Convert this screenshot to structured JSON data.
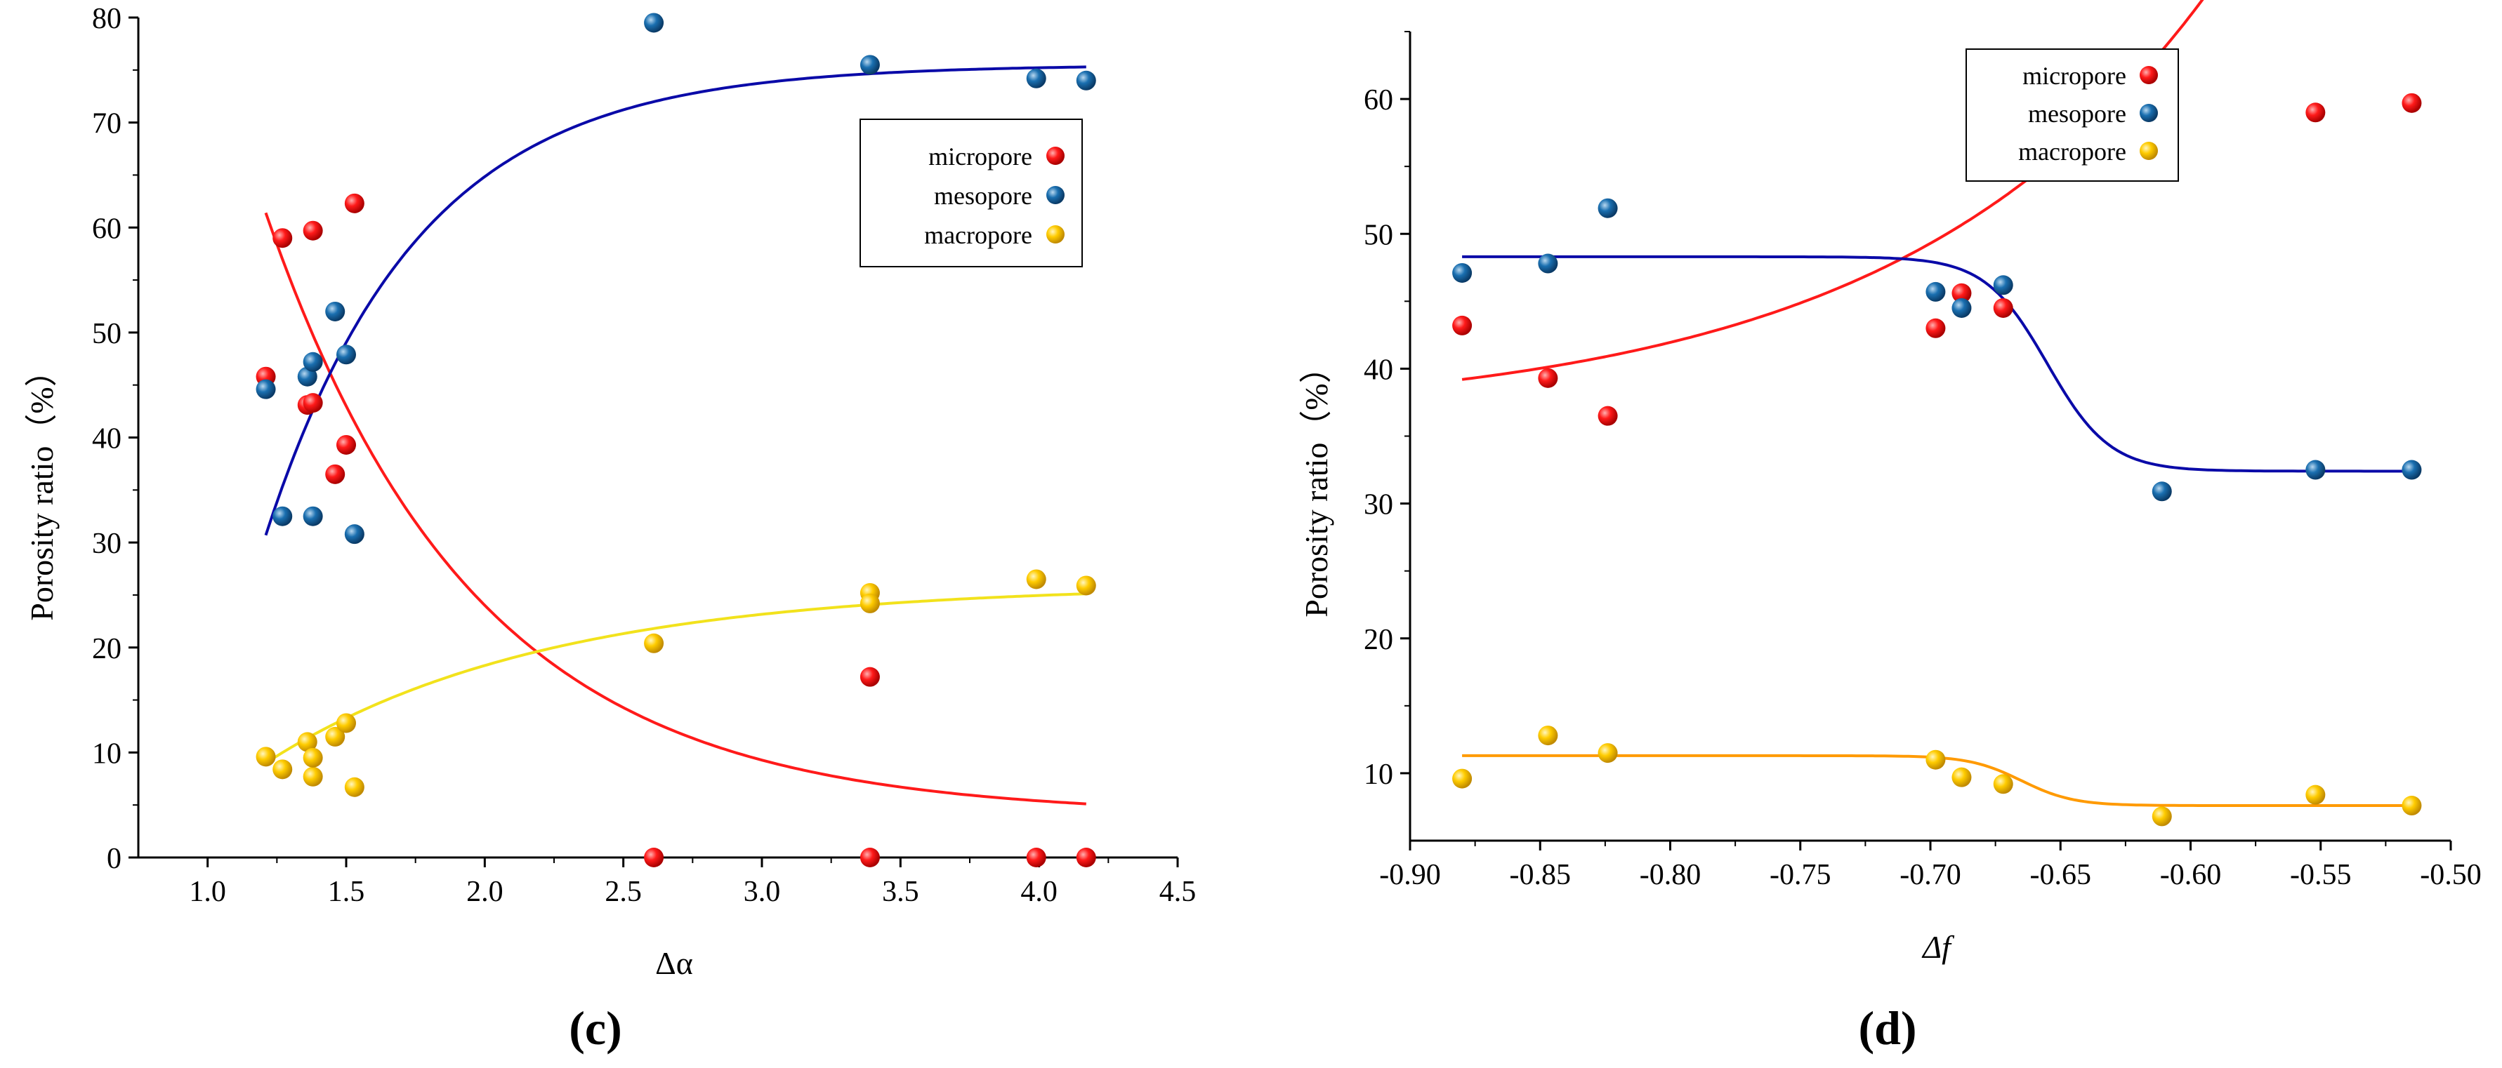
{
  "colors": {
    "micropore": "#e8141b",
    "mesopore": "#11659e",
    "macropore": "#f5c400",
    "fit_micropore": "#ff1a1a",
    "fit_mesopore": "#0a0aa8",
    "fit_macropore_c": "#f2e21c",
    "fit_macropore_d": "#ff9a00"
  },
  "chart_data": [
    {
      "type": "scatter",
      "panel_label": "(c)",
      "xlabel": "Δα",
      "ylabel": "Porosity ratio（%）",
      "xlim": [
        0.75,
        4.5
      ],
      "ylim": [
        0,
        80
      ],
      "xticks": [
        "1.0",
        "1.5",
        "2.0",
        "2.5",
        "3.0",
        "3.5",
        "4.0",
        "4.5"
      ],
      "xtick_values": [
        1.0,
        1.5,
        2.0,
        2.5,
        3.0,
        3.5,
        4.0,
        4.5
      ],
      "yticks": [
        "0",
        "10",
        "20",
        "30",
        "40",
        "50",
        "60",
        "70",
        "80"
      ],
      "ytick_values": [
        0,
        10,
        20,
        30,
        40,
        50,
        60,
        70,
        80
      ],
      "legend": {
        "position": "top-right",
        "entries": [
          "micropore",
          "mesopore",
          "macropore"
        ]
      },
      "series": [
        {
          "name": "micropore",
          "points": [
            [
              1.21,
              45.8
            ],
            [
              1.27,
              59.0
            ],
            [
              1.36,
              43.1
            ],
            [
              1.38,
              59.7
            ],
            [
              1.38,
              43.3
            ],
            [
              1.46,
              36.5
            ],
            [
              1.5,
              39.3
            ],
            [
              1.53,
              62.3
            ],
            [
              2.61,
              0.0
            ],
            [
              3.39,
              17.2
            ],
            [
              3.39,
              0.0
            ],
            [
              3.99,
              0.0
            ],
            [
              4.17,
              0.0
            ]
          ],
          "fit": {
            "kind": "exp-decay",
            "x0": 1.21,
            "x1": 4.17,
            "y0": 4.0,
            "A": 57.4,
            "t": 0.75
          }
        },
        {
          "name": "mesopore",
          "points": [
            [
              1.21,
              44.6
            ],
            [
              1.27,
              32.5
            ],
            [
              1.36,
              45.8
            ],
            [
              1.38,
              32.5
            ],
            [
              1.38,
              47.2
            ],
            [
              1.46,
              52.0
            ],
            [
              1.5,
              47.9
            ],
            [
              1.53,
              30.8
            ],
            [
              2.61,
              79.5
            ],
            [
              3.39,
              75.5
            ],
            [
              3.99,
              74.2
            ],
            [
              4.17,
              74.0
            ]
          ],
          "fit": {
            "kind": "exp-rise",
            "x0": 1.21,
            "x1": 4.17,
            "y0": 75.5,
            "A": 44.8,
            "t": 0.55
          }
        },
        {
          "name": "macropore",
          "points": [
            [
              1.21,
              9.6
            ],
            [
              1.27,
              8.4
            ],
            [
              1.36,
              11.0
            ],
            [
              1.38,
              7.7
            ],
            [
              1.38,
              9.5
            ],
            [
              1.46,
              11.5
            ],
            [
              1.5,
              12.8
            ],
            [
              1.53,
              6.7
            ],
            [
              2.61,
              20.4
            ],
            [
              3.39,
              25.2
            ],
            [
              3.39,
              24.2
            ],
            [
              3.99,
              26.5
            ],
            [
              4.17,
              25.9
            ]
          ],
          "fit": {
            "kind": "exp-rise",
            "x0": 1.21,
            "x1": 4.17,
            "y0": 26.0,
            "A": 17.0,
            "t": 1.0
          }
        }
      ]
    },
    {
      "type": "scatter",
      "panel_label": "(d)",
      "xlabel": "Δf",
      "ylabel": "Porosity ratio（%）",
      "xlim": [
        -0.9,
        -0.5
      ],
      "ylim": [
        5,
        65
      ],
      "xticks": [
        "-0.90",
        "-0.85",
        "-0.80",
        "-0.75",
        "-0.70",
        "-0.65",
        "-0.60",
        "-0.55",
        "-0.50"
      ],
      "xtick_values": [
        -0.9,
        -0.85,
        -0.8,
        -0.75,
        -0.7,
        -0.65,
        -0.6,
        -0.55,
        -0.5
      ],
      "yticks": [
        "10",
        "20",
        "30",
        "40",
        "50",
        "60"
      ],
      "ytick_values": [
        10,
        20,
        30,
        40,
        50,
        60
      ],
      "legend": {
        "position": "top-center",
        "entries": [
          "micropore",
          "mesopore",
          "macropore"
        ]
      },
      "series": [
        {
          "name": "micropore",
          "points": [
            [
              -0.88,
              43.2
            ],
            [
              -0.847,
              39.3
            ],
            [
              -0.824,
              36.5
            ],
            [
              -0.698,
              43.0
            ],
            [
              -0.688,
              45.6
            ],
            [
              -0.672,
              44.5
            ],
            [
              -0.552,
              59.0
            ],
            [
              -0.515,
              59.7
            ]
          ],
          "fit": {
            "kind": "exp-grow",
            "x0": -0.88,
            "x1": -0.515,
            "y0": 36.3,
            "A": 2.9,
            "t": 0.12
          }
        },
        {
          "name": "mesopore",
          "points": [
            [
              -0.88,
              47.1
            ],
            [
              -0.847,
              47.8
            ],
            [
              -0.824,
              51.9
            ],
            [
              -0.698,
              45.7
            ],
            [
              -0.688,
              44.5
            ],
            [
              -0.672,
              46.2
            ],
            [
              -0.611,
              30.9
            ],
            [
              -0.552,
              32.5
            ],
            [
              -0.515,
              32.5
            ]
          ],
          "fit": {
            "kind": "sigmoid",
            "x0": -0.88,
            "x1": -0.515,
            "top": 48.3,
            "bottom": 32.4,
            "mid": -0.655,
            "w": 0.012
          }
        },
        {
          "name": "macropore",
          "points": [
            [
              -0.88,
              9.6
            ],
            [
              -0.847,
              12.8
            ],
            [
              -0.824,
              11.5
            ],
            [
              -0.698,
              11.0
            ],
            [
              -0.688,
              9.7
            ],
            [
              -0.672,
              9.2
            ],
            [
              -0.611,
              6.8
            ],
            [
              -0.552,
              8.4
            ],
            [
              -0.515,
              7.6
            ]
          ],
          "fit": {
            "kind": "sigmoid",
            "x0": -0.88,
            "x1": -0.515,
            "top": 11.3,
            "bottom": 7.6,
            "mid": -0.665,
            "w": 0.01
          }
        }
      ]
    }
  ]
}
